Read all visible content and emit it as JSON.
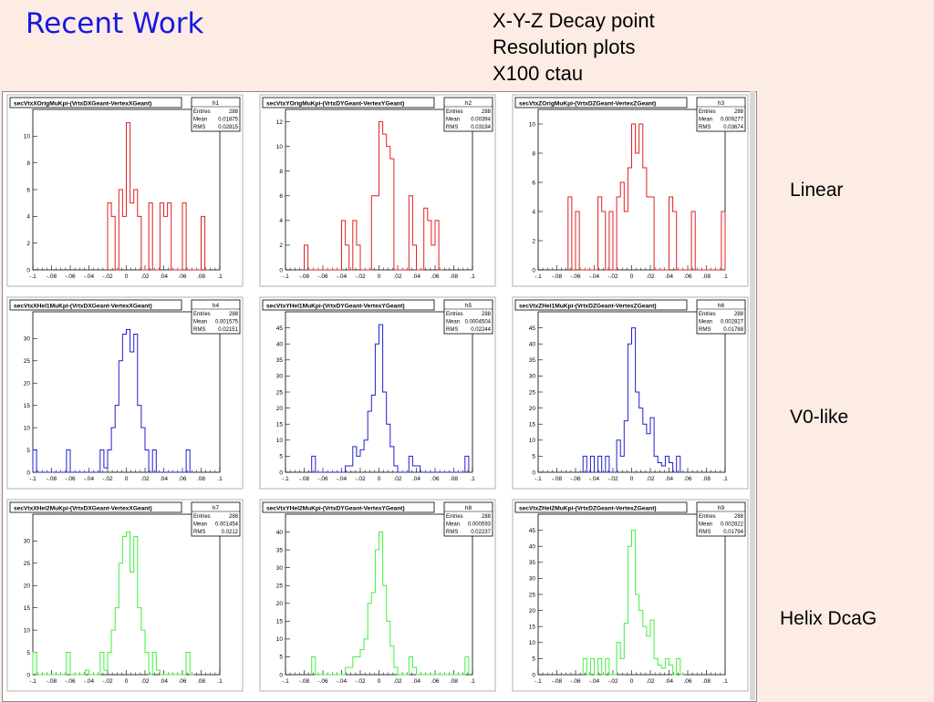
{
  "title": "Recent Work",
  "subtitle_lines": [
    "X-Y-Z Decay point",
    "Resolution plots",
    "X100 ctau"
  ],
  "row_labels": {
    "linear": "Linear",
    "v0": "V0-like",
    "helix": "Helix DcaG"
  },
  "colors": {
    "title": "#1818e0",
    "linear": "#e02020",
    "v0": "#2020d0",
    "helix": "#40f040",
    "background": "#fcece4"
  },
  "stats_labels": {
    "entries": "Entries",
    "mean": "Mean",
    "rms": "RMS"
  },
  "chart_data": [
    {
      "type": "bar",
      "title": "secVtxXOrigMuKpi-(VrtxDXGeant-VertexXGeant)",
      "hist_name": "h1",
      "entries": "288",
      "mean": "0.01875",
      "rms": "0.02815",
      "xlim": [
        -0.1,
        0.1
      ],
      "ylim": [
        0,
        12
      ],
      "x_ticks": [
        -0.1,
        -0.08,
        -0.06,
        -0.04,
        -0.02,
        0,
        0.02,
        0.04,
        0.06,
        0.08,
        0.1
      ],
      "y_ticks": [
        0,
        2,
        4,
        6,
        8,
        10
      ],
      "bin_width": 0.004,
      "bins": [
        [
          -0.02,
          5
        ],
        [
          -0.016,
          4
        ],
        [
          -0.012,
          0
        ],
        [
          -0.008,
          6
        ],
        [
          -0.004,
          4
        ],
        [
          0,
          11
        ],
        [
          0.004,
          5
        ],
        [
          0.008,
          6
        ],
        [
          0.012,
          4
        ],
        [
          0.016,
          0
        ],
        [
          0.024,
          5
        ],
        [
          0.028,
          0
        ],
        [
          0.036,
          5
        ],
        [
          0.04,
          4
        ],
        [
          0.044,
          5
        ],
        [
          0.048,
          0
        ],
        [
          0.06,
          5
        ],
        [
          0.064,
          0
        ],
        [
          0.08,
          4
        ],
        [
          0.084,
          0
        ]
      ],
      "style": "linear"
    },
    {
      "type": "bar",
      "title": "secVtxYOrigMuKpi-(VrtxDYGeant-VertexYGeant)",
      "hist_name": "h2",
      "entries": "288",
      "mean": "0.00394",
      "rms": "0.03194",
      "xlim": [
        -0.1,
        0.1
      ],
      "ylim": [
        0,
        13
      ],
      "x_ticks": [
        -0.1,
        -0.08,
        -0.06,
        -0.04,
        -0.02,
        0,
        0.02,
        0.04,
        0.06,
        0.08,
        0.1
      ],
      "y_ticks": [
        0,
        2,
        4,
        6,
        8,
        10,
        12
      ],
      "bin_width": 0.004,
      "bins": [
        [
          -0.08,
          2
        ],
        [
          -0.076,
          0
        ],
        [
          -0.04,
          4
        ],
        [
          -0.036,
          2
        ],
        [
          -0.032,
          0
        ],
        [
          -0.028,
          4
        ],
        [
          -0.024,
          2
        ],
        [
          -0.02,
          0
        ],
        [
          -0.008,
          6
        ],
        [
          -0.004,
          6
        ],
        [
          0,
          12
        ],
        [
          0.004,
          11
        ],
        [
          0.008,
          10
        ],
        [
          0.012,
          9
        ],
        [
          0.016,
          0
        ],
        [
          0.032,
          6
        ],
        [
          0.036,
          2
        ],
        [
          0.04,
          0
        ],
        [
          0.048,
          5
        ],
        [
          0.052,
          4
        ],
        [
          0.056,
          2
        ],
        [
          0.06,
          4
        ],
        [
          0.064,
          0
        ]
      ],
      "style": "linear"
    },
    {
      "type": "bar",
      "title": "secVtxZOrigMuKpi-(VrtxDZGeant-VertexZGeant)",
      "hist_name": "h3",
      "entries": "288",
      "mean": "0.009277",
      "rms": "0.03674",
      "xlim": [
        -0.1,
        0.1
      ],
      "ylim": [
        0,
        11
      ],
      "x_ticks": [
        -0.1,
        -0.08,
        -0.06,
        -0.04,
        -0.02,
        0,
        0.02,
        0.04,
        0.06,
        0.08,
        0.1
      ],
      "y_ticks": [
        0,
        2,
        4,
        6,
        8,
        10
      ],
      "bin_width": 0.004,
      "bins": [
        [
          -0.068,
          5
        ],
        [
          -0.064,
          0
        ],
        [
          -0.06,
          4
        ],
        [
          -0.056,
          0
        ],
        [
          -0.036,
          5
        ],
        [
          -0.032,
          4
        ],
        [
          -0.028,
          0
        ],
        [
          -0.024,
          4
        ],
        [
          -0.02,
          0
        ],
        [
          -0.016,
          5
        ],
        [
          -0.012,
          6
        ],
        [
          -0.008,
          4
        ],
        [
          -0.004,
          7
        ],
        [
          0,
          10
        ],
        [
          0.004,
          8
        ],
        [
          0.008,
          10
        ],
        [
          0.012,
          7
        ],
        [
          0.016,
          5
        ],
        [
          0.02,
          5
        ],
        [
          0.024,
          0
        ],
        [
          0.04,
          5
        ],
        [
          0.044,
          4
        ],
        [
          0.048,
          0
        ],
        [
          0.064,
          4
        ],
        [
          0.068,
          0
        ],
        [
          0.096,
          4
        ]
      ],
      "style": "linear"
    },
    {
      "type": "bar",
      "title": "secVtxXHel1MuKpi-(VrtxDXGeant-VertexXGeant)",
      "hist_name": "h4",
      "entries": "288",
      "mean": "0.001575",
      "rms": "0.02151",
      "xlim": [
        -0.1,
        0.1
      ],
      "ylim": [
        0,
        36
      ],
      "x_ticks": [
        -0.1,
        -0.08,
        -0.06,
        -0.04,
        -0.02,
        0,
        0.02,
        0.04,
        0.06,
        0.08,
        0.1
      ],
      "y_ticks": [
        0,
        5,
        10,
        15,
        20,
        25,
        30
      ],
      "bin_width": 0.004,
      "bins": [
        [
          -0.1,
          5
        ],
        [
          -0.096,
          0
        ],
        [
          -0.064,
          5
        ],
        [
          -0.06,
          0
        ],
        [
          -0.028,
          5
        ],
        [
          -0.024,
          1
        ],
        [
          -0.02,
          5
        ],
        [
          -0.016,
          10
        ],
        [
          -0.012,
          15
        ],
        [
          -0.008,
          25
        ],
        [
          -0.004,
          31
        ],
        [
          0,
          32
        ],
        [
          0.004,
          27
        ],
        [
          0.008,
          31
        ],
        [
          0.012,
          15
        ],
        [
          0.016,
          10
        ],
        [
          0.02,
          5
        ],
        [
          0.024,
          0
        ],
        [
          0.028,
          5
        ],
        [
          0.032,
          0
        ],
        [
          0.064,
          5
        ],
        [
          0.068,
          0
        ]
      ],
      "style": "v0"
    },
    {
      "type": "bar",
      "title": "secVtxYHel1MuKpi-(VrtxDYGeant-VertexYGeant)",
      "hist_name": "h5",
      "entries": "288",
      "mean": "0.0004504",
      "rms": "0.02244",
      "xlim": [
        -0.1,
        0.1
      ],
      "ylim": [
        0,
        50
      ],
      "x_ticks": [
        -0.1,
        -0.08,
        -0.06,
        -0.04,
        -0.02,
        0,
        0.02,
        0.04,
        0.06,
        0.08,
        0.1
      ],
      "y_ticks": [
        0,
        5,
        10,
        15,
        20,
        25,
        30,
        35,
        40,
        45
      ],
      "bin_width": 0.004,
      "bins": [
        [
          -0.072,
          5
        ],
        [
          -0.068,
          0
        ],
        [
          -0.036,
          2
        ],
        [
          -0.032,
          2
        ],
        [
          -0.028,
          8
        ],
        [
          -0.024,
          5
        ],
        [
          -0.02,
          7
        ],
        [
          -0.016,
          10
        ],
        [
          -0.012,
          19
        ],
        [
          -0.008,
          24
        ],
        [
          -0.004,
          40
        ],
        [
          0,
          46
        ],
        [
          0.004,
          25
        ],
        [
          0.008,
          15
        ],
        [
          0.012,
          8
        ],
        [
          0.016,
          2
        ],
        [
          0.02,
          0
        ],
        [
          0.032,
          5
        ],
        [
          0.036,
          2
        ],
        [
          0.04,
          2
        ],
        [
          0.044,
          0
        ],
        [
          0.092,
          5
        ]
      ],
      "style": "v0"
    },
    {
      "type": "bar",
      "title": "secVtxZHel1MuKpi-(VrtxDZGeant-VertexZGeant)",
      "hist_name": "h6",
      "entries": "288",
      "mean": "0.002827",
      "rms": "0.01788",
      "xlim": [
        -0.1,
        0.1
      ],
      "ylim": [
        0,
        50
      ],
      "x_ticks": [
        -0.1,
        -0.08,
        -0.06,
        -0.04,
        -0.02,
        0,
        0.02,
        0.04,
        0.06,
        0.08,
        0.1
      ],
      "y_ticks": [
        0,
        5,
        10,
        15,
        20,
        25,
        30,
        35,
        40,
        45
      ],
      "bin_width": 0.004,
      "bins": [
        [
          -0.052,
          5
        ],
        [
          -0.048,
          0
        ],
        [
          -0.044,
          5
        ],
        [
          -0.04,
          0
        ],
        [
          -0.036,
          5
        ],
        [
          -0.032,
          0
        ],
        [
          -0.028,
          5
        ],
        [
          -0.024,
          0
        ],
        [
          -0.016,
          10
        ],
        [
          -0.012,
          5
        ],
        [
          -0.008,
          16
        ],
        [
          -0.004,
          40
        ],
        [
          0,
          45
        ],
        [
          0.004,
          25
        ],
        [
          0.008,
          20
        ],
        [
          0.012,
          15
        ],
        [
          0.016,
          12
        ],
        [
          0.02,
          17
        ],
        [
          0.024,
          5
        ],
        [
          0.028,
          3
        ],
        [
          0.032,
          2
        ],
        [
          0.036,
          5
        ],
        [
          0.04,
          3
        ],
        [
          0.044,
          0
        ],
        [
          0.048,
          5
        ],
        [
          0.052,
          0
        ]
      ],
      "style": "v0"
    },
    {
      "type": "bar",
      "title": "secVtxXHel2MuKpi-(VrtxDXGeant-VertexXGeant)",
      "hist_name": "h7",
      "entries": "288",
      "mean": "0.001454",
      "rms": "0.0212",
      "xlim": [
        -0.1,
        0.1
      ],
      "ylim": [
        0,
        36
      ],
      "x_ticks": [
        -0.1,
        -0.08,
        -0.06,
        -0.04,
        -0.02,
        0,
        0.02,
        0.04,
        0.06,
        0.08,
        0.1
      ],
      "y_ticks": [
        0,
        5,
        10,
        15,
        20,
        25,
        30
      ],
      "bin_width": 0.004,
      "bins": [
        [
          -0.1,
          5
        ],
        [
          -0.096,
          0
        ],
        [
          -0.064,
          5
        ],
        [
          -0.06,
          0
        ],
        [
          -0.044,
          1
        ],
        [
          -0.04,
          0
        ],
        [
          -0.028,
          5
        ],
        [
          -0.024,
          1
        ],
        [
          -0.02,
          5
        ],
        [
          -0.016,
          10
        ],
        [
          -0.012,
          15
        ],
        [
          -0.008,
          25
        ],
        [
          -0.004,
          31
        ],
        [
          0,
          32
        ],
        [
          0.004,
          23
        ],
        [
          0.008,
          31
        ],
        [
          0.012,
          15
        ],
        [
          0.016,
          10
        ],
        [
          0.02,
          5
        ],
        [
          0.024,
          0
        ],
        [
          0.028,
          5
        ],
        [
          0.032,
          1
        ],
        [
          0.036,
          0
        ],
        [
          0.064,
          5
        ],
        [
          0.068,
          0
        ]
      ],
      "style": "helix"
    },
    {
      "type": "bar",
      "title": "secVtxYHel2MuKpi-(VrtxDYGeant-VertexYGeant)",
      "hist_name": "h8",
      "entries": "288",
      "mean": "0.000593",
      "rms": "0.02237",
      "xlim": [
        -0.1,
        0.1
      ],
      "ylim": [
        0,
        45
      ],
      "x_ticks": [
        -0.1,
        -0.08,
        -0.06,
        -0.04,
        -0.02,
        0,
        0.02,
        0.04,
        0.06,
        0.08,
        0.1
      ],
      "y_ticks": [
        0,
        5,
        10,
        15,
        20,
        25,
        30,
        35,
        40
      ],
      "bin_width": 0.004,
      "bins": [
        [
          -0.072,
          5
        ],
        [
          -0.068,
          0
        ],
        [
          -0.036,
          2
        ],
        [
          -0.032,
          2
        ],
        [
          -0.028,
          5
        ],
        [
          -0.024,
          5
        ],
        [
          -0.02,
          7
        ],
        [
          -0.016,
          10
        ],
        [
          -0.012,
          20
        ],
        [
          -0.008,
          23
        ],
        [
          -0.004,
          35
        ],
        [
          0,
          40
        ],
        [
          0.004,
          25
        ],
        [
          0.008,
          15
        ],
        [
          0.012,
          8
        ],
        [
          0.016,
          2
        ],
        [
          0.02,
          0
        ],
        [
          0.032,
          5
        ],
        [
          0.036,
          2
        ],
        [
          0.04,
          0
        ],
        [
          0.092,
          5
        ]
      ],
      "style": "helix"
    },
    {
      "type": "bar",
      "title": "secVtxZHel2MuKpi-(VrtxDZGeant-VertexZGeant)",
      "hist_name": "h9",
      "entries": "288",
      "mean": "0.002822",
      "rms": "0.01794",
      "xlim": [
        -0.1,
        0.1
      ],
      "ylim": [
        0,
        50
      ],
      "x_ticks": [
        -0.1,
        -0.08,
        -0.06,
        -0.04,
        -0.02,
        0,
        0.02,
        0.04,
        0.06,
        0.08,
        0.1
      ],
      "y_ticks": [
        0,
        5,
        10,
        15,
        20,
        25,
        30,
        35,
        40,
        45
      ],
      "bin_width": 0.004,
      "bins": [
        [
          -0.052,
          5
        ],
        [
          -0.048,
          0
        ],
        [
          -0.044,
          5
        ],
        [
          -0.04,
          0
        ],
        [
          -0.036,
          5
        ],
        [
          -0.032,
          0
        ],
        [
          -0.028,
          5
        ],
        [
          -0.024,
          0
        ],
        [
          -0.016,
          10
        ],
        [
          -0.012,
          5
        ],
        [
          -0.008,
          16
        ],
        [
          -0.004,
          40
        ],
        [
          0,
          45
        ],
        [
          0.004,
          25
        ],
        [
          0.008,
          20
        ],
        [
          0.012,
          15
        ],
        [
          0.016,
          12
        ],
        [
          0.02,
          17
        ],
        [
          0.024,
          5
        ],
        [
          0.028,
          3
        ],
        [
          0.032,
          2
        ],
        [
          0.036,
          5
        ],
        [
          0.04,
          3
        ],
        [
          0.044,
          0
        ],
        [
          0.048,
          5
        ],
        [
          0.052,
          0
        ]
      ],
      "style": "helix"
    }
  ]
}
